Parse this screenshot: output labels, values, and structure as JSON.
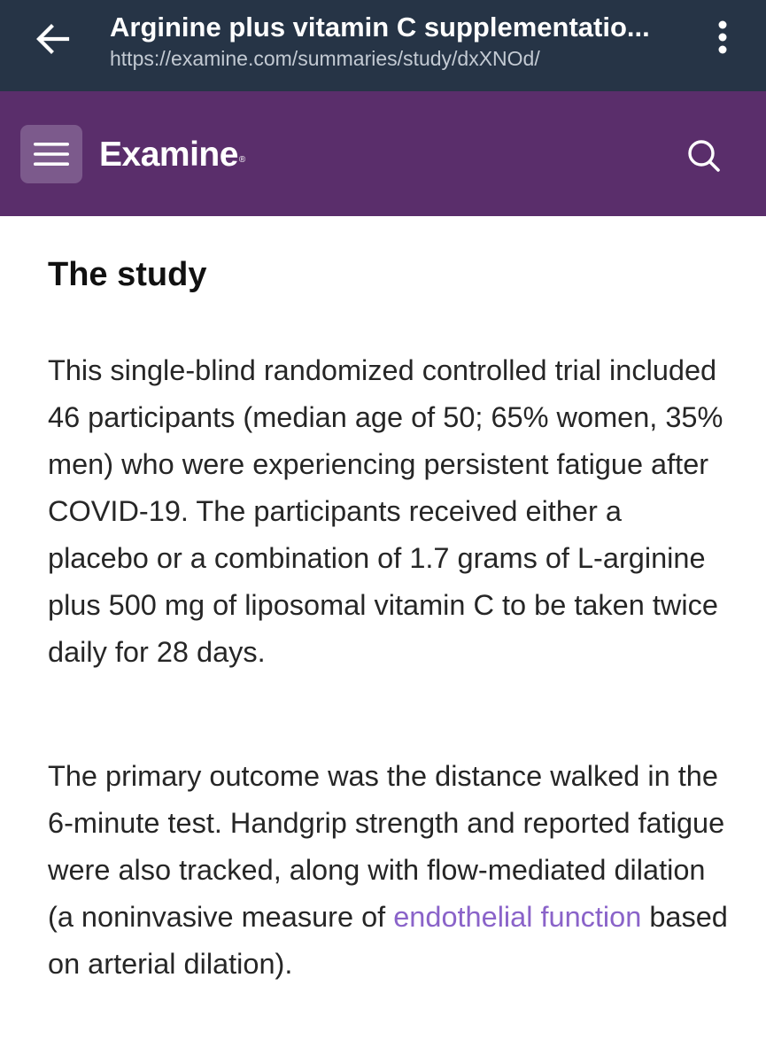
{
  "browser": {
    "title": "Arginine plus vitamin C supplementatio...",
    "url": "https://examine.com/summaries/study/dxXNOd/",
    "back_icon": "arrow-left-icon",
    "menu_icon": "vertical-dots-icon"
  },
  "site_header": {
    "logo": "Examine",
    "logo_mark": "®",
    "menu_icon": "hamburger-icon",
    "search_icon": "search-icon",
    "background_color": "#5a2e6b"
  },
  "article": {
    "section_heading": "The study",
    "paragraph1": "This single-blind randomized controlled trial included 46 participants (median age of 50; 65% women, 35% men) who were experiencing persistent fatigue after COVID-19. The participants received either a placebo or a combination of 1.7 grams of L-arginine plus 500 mg of liposomal vitamin C to be taken twice daily for 28 days.",
    "paragraph2_before_link": "The primary outcome was the distance walked in the 6-minute test. Handgrip strength and reported fatigue were also tracked, along with flow-mediated dilation (a noninvasive measure of ",
    "paragraph2_link": "endothelial function",
    "paragraph2_after_link": " based on arterial dilation).",
    "link_color": "#8a63c9"
  }
}
